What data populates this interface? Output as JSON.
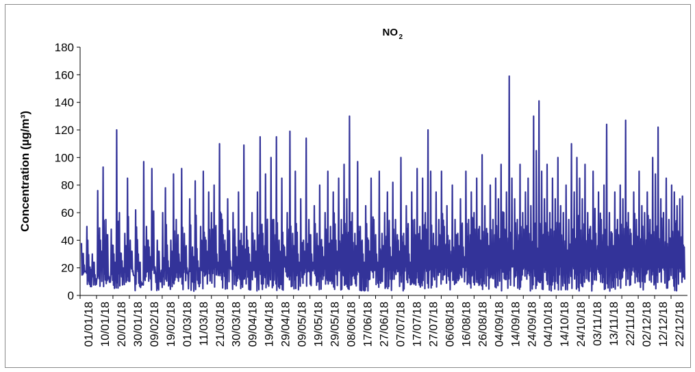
{
  "chart_data": {
    "type": "line",
    "title": "NO",
    "title_subscript": "2",
    "ylabel": "Concentration (µg/m³)",
    "xlabel": "",
    "ylim": [
      0,
      180
    ],
    "y_ticks": [
      "0",
      "20",
      "40",
      "60",
      "80",
      "100",
      "120",
      "140",
      "160",
      "180"
    ],
    "x_tick_labels": [
      "01/01/18",
      "10/01/18",
      "20/01/18",
      "30/01/18",
      "09/02/18",
      "19/02/18",
      "01/03/18",
      "11/03/18",
      "21/03/18",
      "30/03/18",
      "09/04/18",
      "19/04/18",
      "29/04/18",
      "09/05/18",
      "19/05/18",
      "29/05/18",
      "08/06/18",
      "17/06/18",
      "27/06/18",
      "07/07/18",
      "17/07/18",
      "27/07/18",
      "06/08/18",
      "16/08/18",
      "26/08/18",
      "04/09/18",
      "14/09/18",
      "24/09/18",
      "04/10/18",
      "14/10/18",
      "24/10/18",
      "03/11/18",
      "13/11/18",
      "22/11/18",
      "02/12/18",
      "12/12/18",
      "22/12/18"
    ],
    "grid": false,
    "legend": "none",
    "series_color": "#333399",
    "series": [
      {
        "values": [
          38,
          22,
          50,
          8,
          30,
          15,
          76,
          40,
          93,
          55,
          12,
          48,
          30,
          120,
          60,
          25,
          45,
          85,
          40,
          18,
          62,
          30,
          10,
          97,
          50,
          35,
          92,
          20,
          40,
          15,
          60,
          78,
          25,
          40,
          88,
          55,
          30,
          92,
          45,
          20,
          70,
          35,
          83,
          25,
          50,
          90,
          40,
          75,
          60,
          80,
          30,
          110,
          55,
          40,
          70,
          25,
          60,
          35,
          75,
          45,
          109,
          50,
          30,
          60,
          40,
          75,
          115,
          45,
          88,
          30,
          100,
          55,
          115,
          40,
          85,
          35,
          60,
          119,
          45,
          90,
          30,
          70,
          40,
          114,
          55,
          30,
          65,
          45,
          80,
          35,
          60,
          90,
          50,
          75,
          40,
          85,
          55,
          95,
          70,
          130,
          60,
          45,
          97,
          50,
          30,
          65,
          40,
          85,
          55,
          30,
          90,
          45,
          60,
          75,
          35,
          82,
          55,
          40,
          100,
          45,
          65,
          30,
          75,
          55,
          92,
          50,
          85,
          60,
          120,
          90,
          45,
          75,
          55,
          90,
          50,
          65,
          40,
          80,
          55,
          45,
          70,
          35,
          90,
          55,
          75,
          60,
          85,
          50,
          102,
          65,
          45,
          80,
          55,
          85,
          70,
          95,
          60,
          75,
          159,
          85,
          70,
          55,
          95,
          60,
          75,
          85,
          65,
          130,
          105,
          141,
          90,
          70,
          95,
          60,
          85,
          70,
          100,
          65,
          60,
          80,
          55,
          110,
          75,
          100,
          85,
          70,
          95,
          60,
          50,
          90,
          45,
          75,
          55,
          80,
          124,
          60,
          45,
          75,
          55,
          80,
          70,
          127,
          60,
          45,
          75,
          55,
          90,
          65,
          60,
          75,
          55,
          100,
          88,
          122,
          70,
          60,
          85,
          55,
          80,
          75,
          65,
          70,
          72
        ]
      }
    ]
  }
}
